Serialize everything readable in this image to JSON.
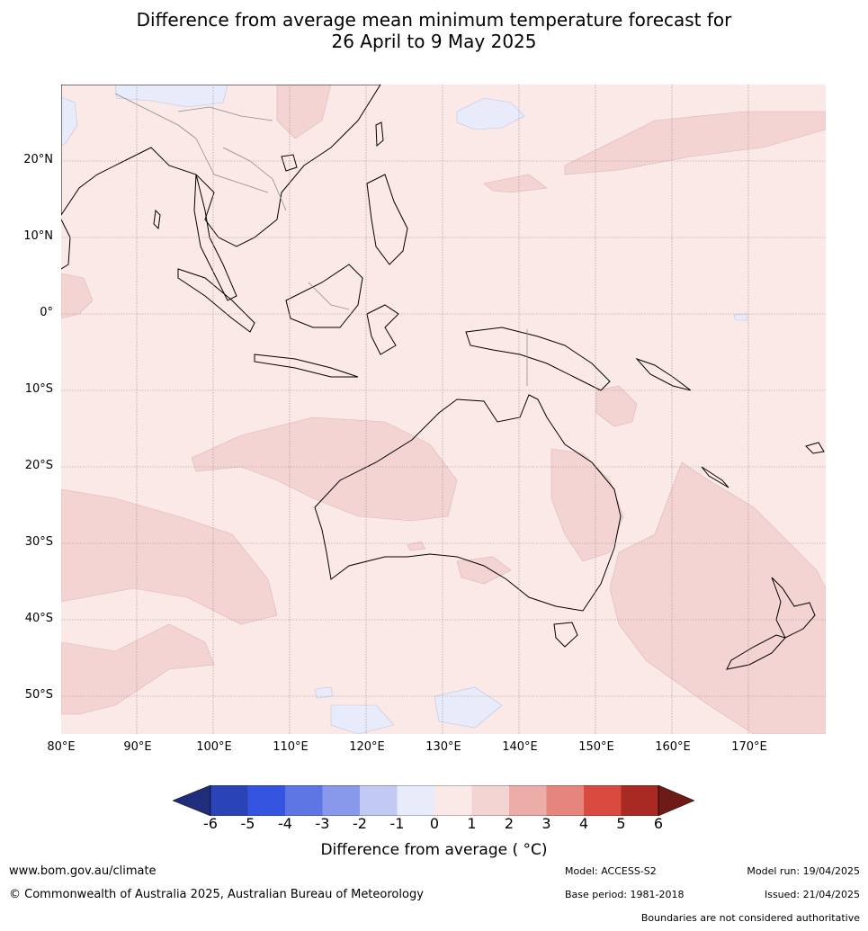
{
  "title": {
    "line1": "Difference from average mean minimum temperature forecast for",
    "line2": "26 April to 9 May 2025"
  },
  "map": {
    "lat_labels": [
      "20°N",
      "10°N",
      "0°",
      "10°S",
      "20°S",
      "30°S",
      "40°S",
      "50°S"
    ],
    "lon_labels": [
      "80°E",
      "90°E",
      "100°E",
      "110°E",
      "120°E",
      "130°E",
      "140°E",
      "150°E",
      "160°E",
      "170°E"
    ],
    "colors": {
      "bin_0_1": "#fbe9e8",
      "bin_1_2": "#f3d4d3",
      "bin_m1_0": "#e8ecfa",
      "coast": "#000000",
      "border": "#8c8c8c",
      "grid": "#9a8a8a"
    }
  },
  "colorbar": {
    "ticks": [
      "-6",
      "-5",
      "-4",
      "-3",
      "-2",
      "-1",
      "0",
      "1",
      "2",
      "3",
      "4",
      "5",
      "6"
    ],
    "colors": [
      "#1f2d7a",
      "#2a44b8",
      "#3455e0",
      "#5d76e3",
      "#8898ea",
      "#c2c9f3",
      "#e8ecfa",
      "#fbe9e8",
      "#f3d4d3",
      "#ecaca7",
      "#e5857d",
      "#d94a3f",
      "#a82a22",
      "#6e1a16"
    ],
    "label": "Difference from average ( °C)"
  },
  "footer": {
    "website": "www.bom.gov.au/climate",
    "copyright": "© Commonwealth of Australia 2025, Australian Bureau of Meteorology",
    "model": "Model: ACCESS-S2",
    "base_period": "Base period: 1981-2018",
    "model_run": "Model run: 19/04/2025",
    "issued": "Issued: 21/04/2025",
    "disclaimer": "Boundaries are not considered authoritative"
  }
}
